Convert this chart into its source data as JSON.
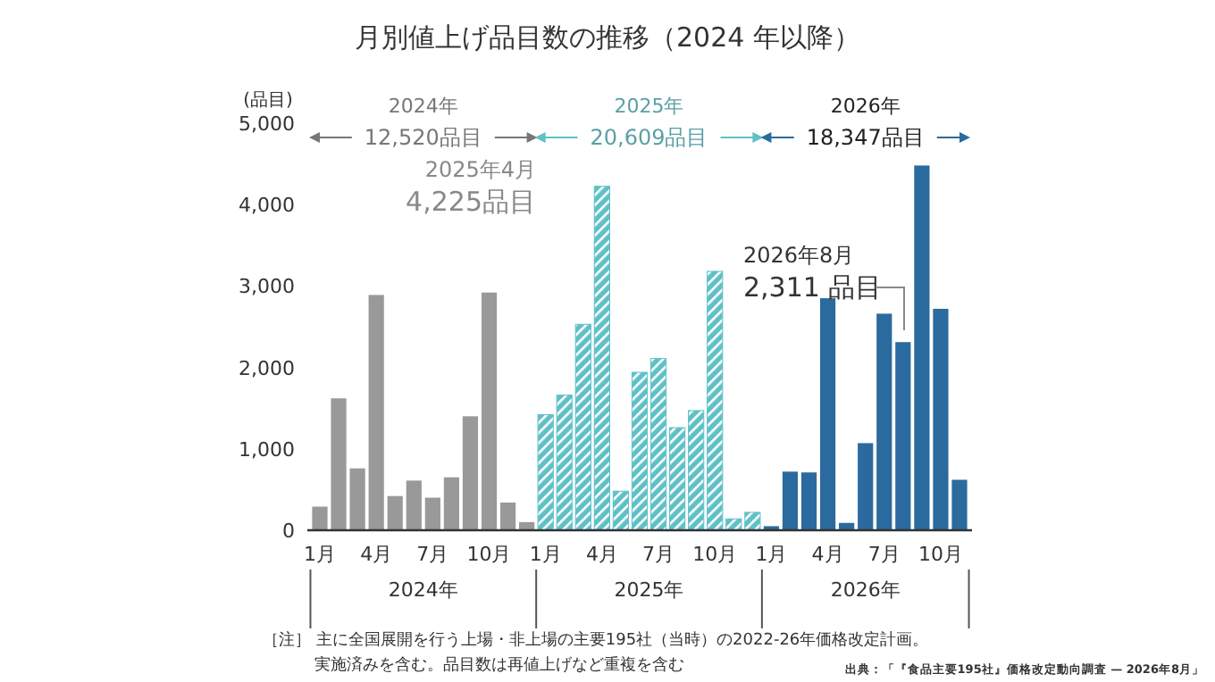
{
  "chart_data": {
    "type": "bar",
    "title": "月別値上げ品目数の推移（2024 年以降）",
    "ylabel": "(品目)",
    "categories": [
      "1月",
      null,
      null,
      "4月",
      null,
      null,
      "7月",
      null,
      null,
      "10月",
      null,
      null,
      "1月",
      null,
      null,
      "4月",
      null,
      null,
      "7月",
      null,
      null,
      "10月",
      null,
      null,
      "1月",
      null,
      null,
      "4月",
      null,
      null,
      "7月",
      null,
      null,
      "10月",
      null
    ],
    "series": [
      {
        "color": "#999999",
        "values": [
          290,
          1620,
          760,
          2890,
          420,
          610,
          400,
          650,
          1400,
          2920,
          340,
          100,
          null,
          null,
          null,
          null,
          null,
          null,
          null,
          null,
          null,
          null,
          null,
          null,
          null,
          null,
          null,
          null,
          null,
          null,
          null,
          null,
          null,
          null,
          null
        ]
      },
      {
        "color": "#5fc0c6",
        "values": [
          null,
          null,
          null,
          null,
          null,
          null,
          null,
          null,
          null,
          null,
          null,
          null,
          1420,
          1660,
          2530,
          4225,
          480,
          1940,
          2110,
          1260,
          1470,
          3180,
          140,
          220,
          null,
          null,
          null,
          null,
          null,
          null,
          null,
          null,
          null,
          null,
          null
        ]
      },
      {
        "color": "#2b6a9e",
        "values": [
          null,
          null,
          null,
          null,
          null,
          null,
          null,
          null,
          null,
          null,
          null,
          null,
          null,
          null,
          null,
          null,
          null,
          null,
          null,
          null,
          null,
          null,
          null,
          null,
          50,
          720,
          710,
          2850,
          90,
          1070,
          2660,
          2311,
          4480,
          2720,
          620
        ]
      }
    ],
    "ylim": [
      0,
      5000
    ],
    "yticks": [
      0,
      {
        "value": 1000,
        "label": "1,000"
      },
      {
        "value": 2000,
        "label": "2,000"
      },
      {
        "value": 3000,
        "label": "3,000"
      },
      {
        "value": 4000,
        "label": "4,000"
      },
      {
        "value": 5000,
        "label": "5,000"
      }
    ],
    "grid": false,
    "annotations": [
      "2024年\n12,520品目",
      "2025年\n20,609品目",
      "2026年\n18,347品目",
      "2024年",
      "2025年",
      "2026年",
      "2025年4月\n4,225品目",
      "2026年8月\n2,311 品目",
      "［注］ 主に全国展開を行う上場・非上場の主要195社（当時）の2022-26年価格改定計画。",
      "実施済みを含む。品目数は再値上げなど重複を含む",
      "出典：「『食品主要195社』価格改定動向調査 — 2026年8月」"
    ]
  }
}
